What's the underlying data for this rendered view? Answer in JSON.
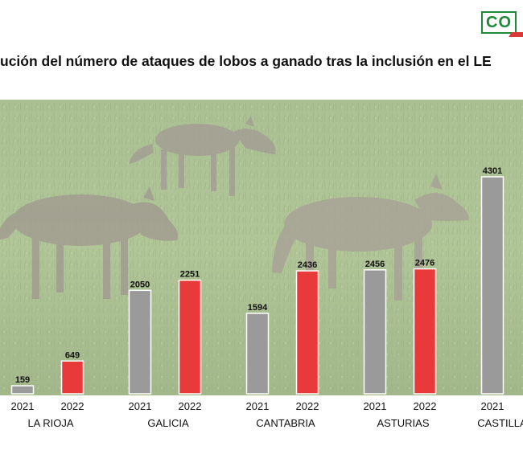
{
  "logo": {
    "text": "CO"
  },
  "title": "ución del número de ataques de lobos a ganado tras la inclusión en el LE",
  "colors": {
    "y2021": "#9a9a9a",
    "y2022": "#e83a3a",
    "grass": "#8fae6a"
  },
  "chart_data": {
    "type": "bar",
    "title": "ución del número de ataques de lobos a ganado tras la inclusión en el LE",
    "categories": [
      "LA RIOJA",
      "GALICIA",
      "CANTABRIA",
      "ASTURIAS",
      "CASTILLA"
    ],
    "series": [
      {
        "year": "2021",
        "values": [
          159,
          2050,
          1594,
          2456,
          4301
        ]
      },
      {
        "year": "2022",
        "values": [
          649,
          2251,
          2436,
          2476,
          null
        ]
      }
    ],
    "data_labels": true,
    "background": "photo of wolves in a grassy field"
  }
}
